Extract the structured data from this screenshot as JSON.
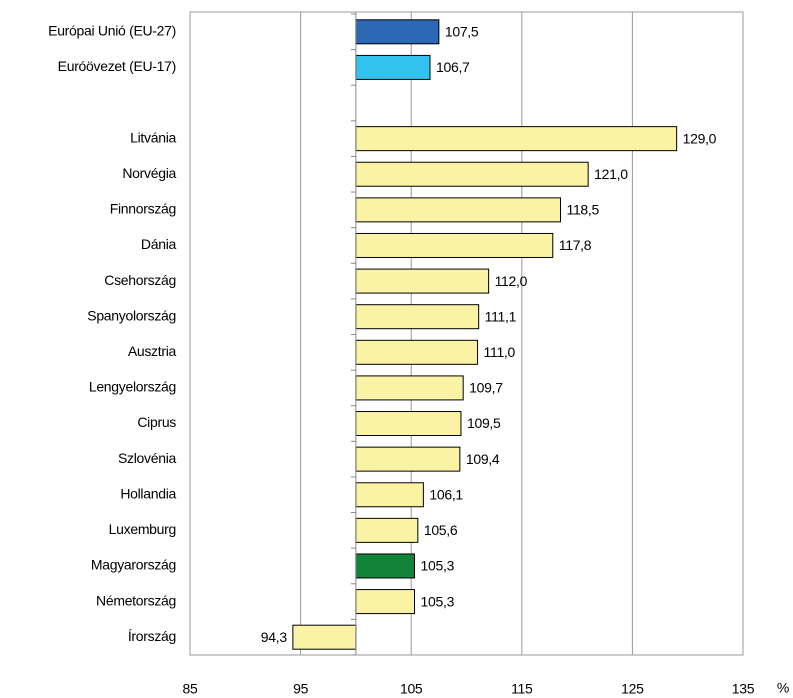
{
  "chart_data": {
    "type": "barh",
    "categories": [
      "Európai Unió (EU-27)",
      "Euróövezet (EU-17)",
      null,
      "Litvánia",
      "Norvégia",
      "Finnország",
      "Dánia",
      "Csehország",
      "Spanyolország",
      "Ausztria",
      "Lengyelország",
      "Ciprus",
      "Szlovénia",
      "Hollandia",
      "Luxemburg",
      "Magyarország",
      "Németország",
      "Írország"
    ],
    "values": [
      107.5,
      106.7,
      null,
      129.0,
      121.0,
      118.5,
      117.8,
      112.0,
      111.1,
      111.0,
      109.7,
      109.5,
      109.4,
      106.1,
      105.6,
      105.3,
      105.3,
      94.3
    ],
    "value_labels": [
      "107,5",
      "106,7",
      null,
      "129,0",
      "121,0",
      "118,5",
      "117,8",
      "112,0",
      "111,1",
      "111,0",
      "109,7",
      "109,5",
      "109,4",
      "106,1",
      "105,6",
      "105,3",
      "105,3",
      "94,3"
    ],
    "colors": [
      "#2c68b4",
      "#32c2ee",
      null,
      "#faf3a6",
      "#faf3a6",
      "#faf3a6",
      "#faf3a6",
      "#faf3a6",
      "#faf3a6",
      "#faf3a6",
      "#faf3a6",
      "#faf3a6",
      "#faf3a6",
      "#faf3a6",
      "#faf3a6",
      "#11843a",
      "#faf3a6",
      "#faf3a6"
    ],
    "base": 100,
    "xlim": [
      85,
      135
    ],
    "xticks": [
      85,
      95,
      105,
      115,
      125,
      135
    ],
    "grid": true,
    "xlabel": "%"
  }
}
